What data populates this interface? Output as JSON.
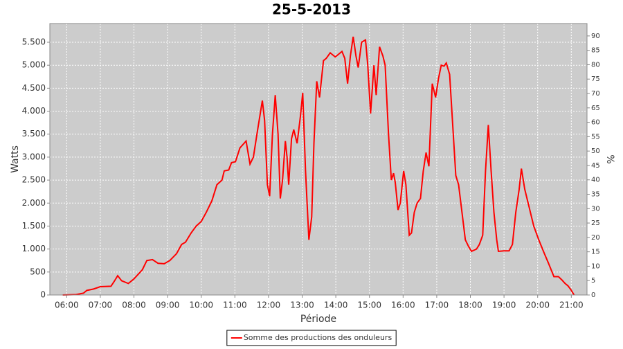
{
  "chart_data": {
    "type": "line",
    "title": "25-5-2013",
    "x_label": "Période",
    "y_label": "Watts",
    "y2_label": "%",
    "x": [
      353,
      377,
      390,
      396,
      408,
      420,
      439,
      445,
      451,
      458,
      470,
      480,
      495,
      503,
      513,
      523,
      534,
      544,
      556,
      565,
      572,
      582,
      591,
      600,
      609,
      619,
      628,
      637,
      641,
      649,
      654,
      661,
      669,
      680,
      687,
      693,
      700,
      709,
      713,
      718,
      722,
      727,
      732,
      737,
      741,
      745,
      750,
      753,
      756,
      761,
      765,
      771,
      777,
      781,
      786,
      792,
      797,
      801,
      806,
      811,
      818,
      823,
      830,
      839,
      846,
      851,
      856,
      861,
      866,
      871,
      876,
      880,
      886,
      893,
      897,
      902,
      908,
      912,
      918,
      924,
      928,
      934,
      939,
      943,
      946,
      951,
      955,
      961,
      965,
      971,
      975,
      980,
      985,
      991,
      996,
      1001,
      1006,
      1012,
      1018,
      1023,
      1028,
      1033,
      1037,
      1043,
      1048,
      1054,
      1059,
      1065,
      1071,
      1077,
      1082,
      1091,
      1096,
      1102,
      1107,
      1112,
      1117,
      1122,
      1127,
      1130,
      1140,
      1149,
      1155,
      1161,
      1167,
      1171,
      1177,
      1185,
      1193,
      1202,
      1212,
      1219,
      1229,
      1237,
      1243,
      1249,
      1254,
      1259,
      1265
    ],
    "series": [
      {
        "name": "Somme des productions des onduleurs",
        "color": "#ff0000",
        "values": [
          0,
          10,
          40,
          100,
          130,
          180,
          190,
          300,
          420,
          310,
          250,
          350,
          550,
          750,
          770,
          690,
          680,
          750,
          900,
          1100,
          1150,
          1350,
          1500,
          1600,
          1800,
          2050,
          2400,
          2500,
          2700,
          2720,
          2880,
          2900,
          3200,
          3350,
          2850,
          3000,
          3550,
          4230,
          3800,
          2400,
          2150,
          3500,
          4350,
          3500,
          2100,
          2500,
          3350,
          3000,
          2400,
          3400,
          3600,
          3300,
          3900,
          4400,
          2700,
          1200,
          1700,
          3300,
          4650,
          4300,
          5100,
          5150,
          5270,
          5180,
          5250,
          5300,
          5150,
          4600,
          5200,
          5620,
          5200,
          4950,
          5500,
          5550,
          5000,
          3950,
          5000,
          4350,
          5400,
          5200,
          5000,
          3500,
          2500,
          2650,
          2450,
          1850,
          2000,
          2700,
          2400,
          1300,
          1350,
          1800,
          2000,
          2100,
          2700,
          3100,
          2800,
          4600,
          4300,
          4700,
          5000,
          4980,
          5050,
          4800,
          3800,
          2600,
          2400,
          1800,
          1200,
          1050,
          950,
          1000,
          1100,
          1300,
          2700,
          3700,
          2700,
          1800,
          1200,
          950,
          960,
          960,
          1100,
          1800,
          2300,
          2750,
          2300,
          1900,
          1500,
          1200,
          900,
          700,
          400,
          400,
          330,
          250,
          200,
          120,
          0
        ]
      }
    ],
    "xlim": [
      330,
      1288
    ],
    "xticks": [
      {
        "value": 360,
        "label": "06:00"
      },
      {
        "value": 420,
        "label": "07:00"
      },
      {
        "value": 480,
        "label": "08:00"
      },
      {
        "value": 540,
        "label": "09:00"
      },
      {
        "value": 600,
        "label": "10:00"
      },
      {
        "value": 660,
        "label": "11:00"
      },
      {
        "value": 720,
        "label": "12:00"
      },
      {
        "value": 780,
        "label": "13:00"
      },
      {
        "value": 840,
        "label": "14:00"
      },
      {
        "value": 900,
        "label": "15:00"
      },
      {
        "value": 960,
        "label": "16:00"
      },
      {
        "value": 1020,
        "label": "17:00"
      },
      {
        "value": 1080,
        "label": "18:00"
      },
      {
        "value": 1140,
        "label": "19:00"
      },
      {
        "value": 1200,
        "label": "20:00"
      },
      {
        "value": 1260,
        "label": "21:00"
      }
    ],
    "ylim": [
      0,
      5907
    ],
    "yticks": [
      0,
      500,
      {
        "value": 1000,
        "label": "1.000"
      },
      {
        "value": 1500,
        "label": "1.500"
      },
      {
        "value": 2000,
        "label": "2.000"
      },
      {
        "value": 2500,
        "label": "2.500"
      },
      {
        "value": 3000,
        "label": "3.000"
      },
      {
        "value": 3500,
        "label": "3.500"
      },
      {
        "value": 4000,
        "label": "4.000"
      },
      {
        "value": 4500,
        "label": "4.500"
      },
      {
        "value": 5000,
        "label": "5.000"
      },
      {
        "value": 5500,
        "label": "5.500"
      }
    ],
    "y2lim": [
      0,
      94.3
    ],
    "y2ticks": [
      0,
      5,
      10,
      15,
      20,
      25,
      30,
      35,
      40,
      45,
      50,
      55,
      60,
      65,
      70,
      75,
      80,
      85,
      90
    ],
    "grid": true,
    "legend": "bottom"
  }
}
